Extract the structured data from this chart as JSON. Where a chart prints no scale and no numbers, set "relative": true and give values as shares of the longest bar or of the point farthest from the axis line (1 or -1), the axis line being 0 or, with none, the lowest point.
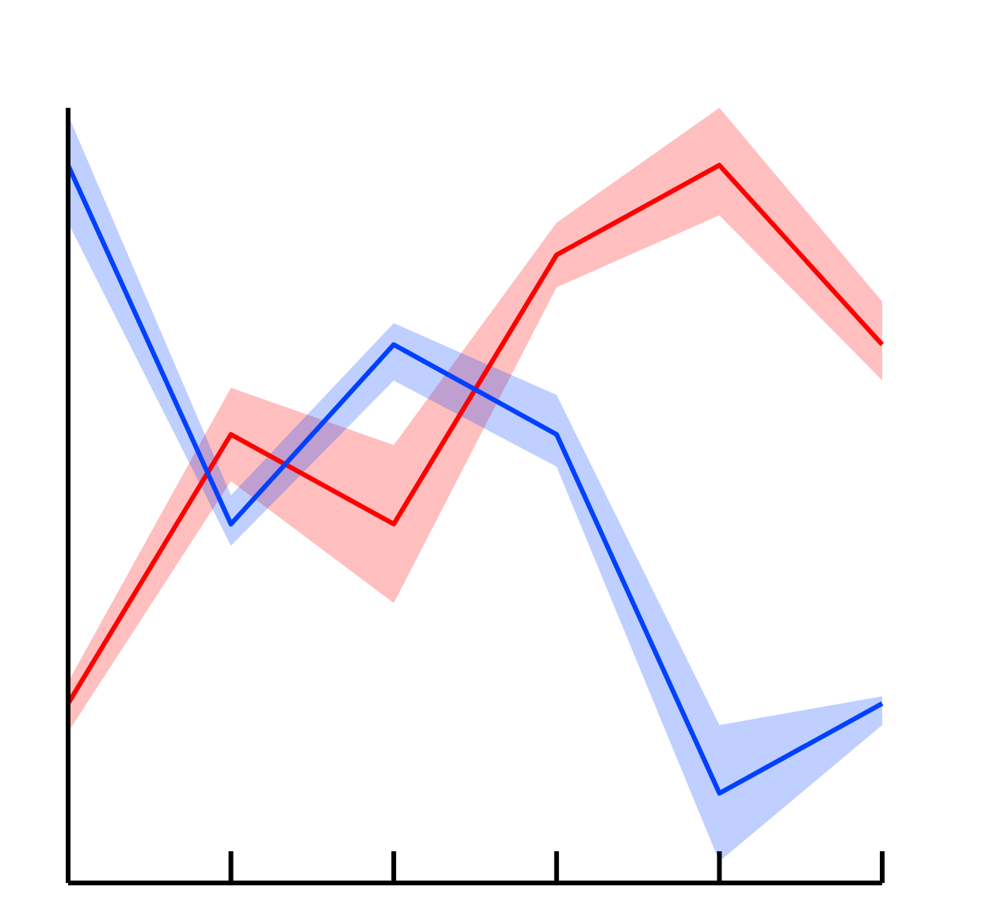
{
  "chart_data": {
    "type": "line",
    "relative": true,
    "categories": [
      null,
      null,
      null,
      null,
      null,
      null
    ],
    "series": [
      {
        "color": "#ff0000",
        "values": [
          0.25,
          0.625,
          0.5,
          0.875,
          1,
          0.75
        ],
        "lower": [
          0.21,
          0.56,
          0.39,
          0.83,
          0.93,
          0.7
        ],
        "upper": [
          0.28,
          0.69,
          0.61,
          0.92,
          1.08,
          0.81
        ]
      },
      {
        "color": "#0040ff",
        "values": [
          1,
          0.5,
          0.75,
          0.625,
          0.125,
          0.25
        ],
        "lower": [
          0.92,
          0.47,
          0.7,
          0.58,
          0.03,
          0.22
        ],
        "upper": [
          1.07,
          0.54,
          0.78,
          0.68,
          0.22,
          0.26
        ]
      }
    ],
    "grid": false,
    "legend": false,
    "marker": "none",
    "line_style": "solid"
  }
}
